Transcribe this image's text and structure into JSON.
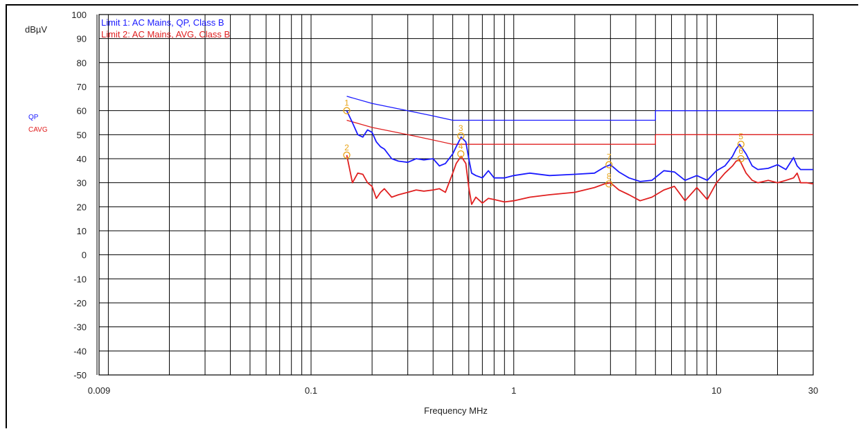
{
  "chart_data": {
    "type": "line",
    "ylabel": "dBµV",
    "xlabel": "Frequency MHz",
    "x_scale": "log",
    "xlim": [
      0.009,
      30
    ],
    "ylim": [
      -50,
      100
    ],
    "x_tick_labels": [
      {
        "value": 0.009,
        "label": "0.009"
      },
      {
        "value": 0.1,
        "label": "0.1"
      },
      {
        "value": 1,
        "label": "1"
      },
      {
        "value": 10,
        "label": "10"
      },
      {
        "value": 30,
        "label": "30"
      }
    ],
    "y_ticks": [
      100,
      90,
      80,
      70,
      60,
      50,
      40,
      30,
      20,
      10,
      0,
      -10,
      -20,
      -30,
      -40,
      -50
    ],
    "grid": true,
    "legend": [
      "Limit 1: AC Mains, QP, Class B",
      "Limit 2: AC Mains, AVG, Class B"
    ],
    "side_labels": [
      "QP",
      "CAVG"
    ],
    "colors": {
      "qp": "#1a1aff",
      "avg": "#e02020",
      "marker": "#e8a317",
      "grid": "#000000"
    },
    "series": [
      {
        "name": "Limit 1: AC Mains, QP, Class B",
        "x": [
          0.15,
          0.2,
          0.3,
          0.4,
          0.5,
          0.5,
          5,
          5,
          30
        ],
        "y": [
          66,
          63,
          60,
          57.8,
          56,
          56,
          56,
          60,
          60
        ]
      },
      {
        "name": "Limit 2: AC Mains, AVG, Class B",
        "x": [
          0.15,
          0.2,
          0.3,
          0.4,
          0.5,
          0.5,
          5,
          5,
          30
        ],
        "y": [
          56,
          53,
          50,
          47.8,
          46,
          46,
          46,
          50,
          50
        ]
      },
      {
        "name": "QP",
        "x": [
          0.15,
          0.16,
          0.17,
          0.18,
          0.19,
          0.2,
          0.21,
          0.22,
          0.23,
          0.25,
          0.27,
          0.3,
          0.33,
          0.36,
          0.4,
          0.43,
          0.46,
          0.5,
          0.52,
          0.55,
          0.58,
          0.6,
          0.62,
          0.65,
          0.7,
          0.75,
          0.8,
          0.9,
          1.0,
          1.2,
          1.5,
          2.0,
          2.5,
          2.8,
          3.0,
          3.3,
          3.7,
          4.2,
          4.8,
          5.5,
          6.2,
          7.0,
          8.0,
          9.0,
          10.0,
          11.0,
          12.0,
          12.5,
          13.0,
          14.0,
          15.0,
          16.0,
          18.0,
          20.0,
          22.0,
          24.0,
          25.0,
          26.0,
          28.0,
          30.0
        ],
        "y": [
          60,
          55,
          50,
          49,
          52,
          51,
          47,
          45,
          44,
          40,
          39,
          38.5,
          40,
          39.5,
          40,
          37,
          38,
          42,
          45,
          49,
          47,
          40,
          34,
          33,
          32,
          35,
          32,
          32,
          33,
          34,
          33,
          33.5,
          34,
          36.5,
          37.5,
          34.5,
          32,
          30.5,
          31,
          35,
          34.5,
          31,
          33,
          31,
          35,
          37,
          41,
          44,
          46,
          42,
          37,
          35.5,
          36,
          37.5,
          35.5,
          40.5,
          37,
          35.5,
          35.5,
          35.5
        ]
      },
      {
        "name": "CAVG",
        "x": [
          0.15,
          0.16,
          0.17,
          0.18,
          0.19,
          0.2,
          0.21,
          0.22,
          0.23,
          0.25,
          0.27,
          0.3,
          0.33,
          0.36,
          0.4,
          0.43,
          0.46,
          0.5,
          0.52,
          0.55,
          0.58,
          0.6,
          0.62,
          0.65,
          0.7,
          0.75,
          0.8,
          0.9,
          1.0,
          1.2,
          1.5,
          2.0,
          2.5,
          2.8,
          3.0,
          3.3,
          3.7,
          4.2,
          4.8,
          5.5,
          6.2,
          7.0,
          8.0,
          9.0,
          10.0,
          11.0,
          12.0,
          12.5,
          13.0,
          14.0,
          15.0,
          16.0,
          18.0,
          20.0,
          22.0,
          24.0,
          25.0,
          26.0,
          28.0,
          30.0
        ],
        "y": [
          41.5,
          30,
          34,
          33.5,
          30,
          28.5,
          23.5,
          26,
          27.5,
          24,
          25,
          26,
          27,
          26.5,
          27,
          27.5,
          26,
          34,
          38,
          41,
          38,
          28,
          21,
          24,
          21.5,
          23.5,
          23,
          22,
          22.5,
          24,
          25,
          26,
          28,
          29.5,
          30,
          27,
          25,
          22.5,
          24,
          27,
          28.5,
          22.5,
          28,
          23,
          30,
          34,
          37,
          39,
          39.5,
          34,
          31,
          30,
          31,
          30,
          31,
          32,
          34,
          30,
          30,
          29.5
        ]
      }
    ],
    "markers": [
      {
        "label": "1",
        "x": 0.15,
        "y": 60
      },
      {
        "label": "2",
        "x": 0.15,
        "y": 41.5
      },
      {
        "label": "3",
        "x": 0.548,
        "y": 49.5
      },
      {
        "label": "4",
        "x": 0.548,
        "y": 42
      },
      {
        "label": "7",
        "x": 2.95,
        "y": 37.5
      },
      {
        "label": "8",
        "x": 2.95,
        "y": 29.5
      },
      {
        "label": "5",
        "x": 13.2,
        "y": 46
      },
      {
        "label": "6",
        "x": 13.2,
        "y": 40
      }
    ]
  }
}
